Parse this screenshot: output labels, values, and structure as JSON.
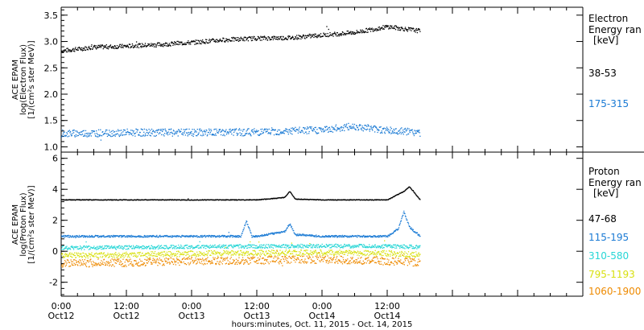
{
  "x_axis": {
    "title": "hours:minutes, Oct. 11, 2015 - Oct. 14, 2015",
    "range_hours": [
      0,
      96
    ],
    "ticks": [
      {
        "hours": 0,
        "time": "0:00",
        "date": "Oct12"
      },
      {
        "hours": 12,
        "time": "12:00",
        "date": "Oct12"
      },
      {
        "hours": 24,
        "time": "0:00",
        "date": "Oct13"
      },
      {
        "hours": 36,
        "time": "12:00",
        "date": "Oct13"
      },
      {
        "hours": 48,
        "time": "0:00",
        "date": "Oct14"
      },
      {
        "hours": 60,
        "time": "12:00",
        "date": "Oct14"
      }
    ]
  },
  "electron_panel": {
    "ylabel_line1": "ACE EPAM",
    "ylabel_line2": "log(Electron Flux)",
    "ylabel_line3": "[1/(cm²s ster MeV)]",
    "legend_title_line1": "Electron",
    "legend_title_line2": "Energy ran",
    "legend_unit": "[keV]"
  },
  "proton_panel": {
    "ylabel_line1": "ACE EPAM",
    "ylabel_line2": "log(Proton Flux)",
    "ylabel_line3": "[1/(cm²s ster MeV)]",
    "legend_title_line1": "Proton",
    "legend_title_line2": "Energy ran",
    "legend_unit": "[keV]"
  },
  "chart_data": [
    {
      "type": "scatter",
      "xlabel": "hours:minutes, Oct. 11, 2015 - Oct. 14, 2015",
      "ylabel": "ACE EPAM log(Electron Flux) [1/(cm²s ster MeV)]",
      "xlim": [
        0,
        96
      ],
      "ylim": [
        0.9,
        3.65
      ],
      "yticks": [
        1.0,
        1.5,
        2.0,
        2.5,
        3.0,
        3.5
      ],
      "series": [
        {
          "name": "38-53",
          "color": "#000000",
          "scatter": 0.04,
          "x": [
            0,
            6,
            12,
            18,
            24,
            30,
            36,
            42,
            48,
            54,
            60,
            66
          ],
          "y": [
            2.83,
            2.9,
            2.92,
            2.95,
            2.99,
            3.04,
            3.07,
            3.08,
            3.13,
            3.18,
            3.29,
            3.21
          ]
        },
        {
          "name": "175-315",
          "color": "#1a7ad4",
          "scatter": 0.07,
          "x": [
            0,
            12,
            24,
            36,
            48,
            54,
            60,
            66
          ],
          "y": [
            1.26,
            1.28,
            1.28,
            1.29,
            1.33,
            1.4,
            1.32,
            1.28
          ]
        }
      ]
    },
    {
      "type": "scatter",
      "xlabel": "hours:minutes, Oct. 11, 2015 - Oct. 14, 2015",
      "ylabel": "ACE EPAM log(Proton Flux) [1/(cm²s ster MeV)]",
      "xlim": [
        0,
        96
      ],
      "ylim": [
        -2.9,
        6.4
      ],
      "yticks": [
        -2,
        0,
        2,
        4,
        6
      ],
      "series": [
        {
          "name": "47-68",
          "color": "#000000",
          "scatter": 0.02,
          "x": [
            0,
            12,
            24,
            36,
            41,
            42,
            43,
            48,
            60,
            63,
            64,
            66
          ],
          "y": [
            3.35,
            3.35,
            3.35,
            3.35,
            3.5,
            3.9,
            3.4,
            3.35,
            3.35,
            3.9,
            4.2,
            3.35
          ]
        },
        {
          "name": "115-195",
          "color": "#1a7ad4",
          "scatter": 0.06,
          "x": [
            0,
            12,
            24,
            33,
            34,
            35,
            36,
            41,
            42,
            43,
            48,
            60,
            62,
            63,
            64,
            66
          ],
          "y": [
            1.0,
            1.0,
            1.0,
            1.0,
            2.0,
            1.0,
            1.0,
            1.3,
            1.8,
            1.1,
            1.0,
            1.0,
            1.5,
            2.6,
            1.6,
            1.0
          ]
        },
        {
          "name": "310-580",
          "color": "#27d6d6",
          "scatter": 0.12,
          "x": [
            0,
            12,
            24,
            36,
            48,
            60,
            66
          ],
          "y": [
            0.25,
            0.28,
            0.32,
            0.35,
            0.38,
            0.35,
            0.3
          ]
        },
        {
          "name": "795-1193",
          "color": "#d8e010",
          "scatter": 0.18,
          "x": [
            0,
            12,
            24,
            36,
            48,
            60,
            66
          ],
          "y": [
            -0.25,
            -0.2,
            -0.12,
            -0.08,
            -0.05,
            -0.1,
            -0.2
          ]
        },
        {
          "name": "1060-1900",
          "color": "#ee8a00",
          "scatter": 0.25,
          "x": [
            0,
            12,
            24,
            36,
            48,
            60,
            66
          ],
          "y": [
            -0.75,
            -0.7,
            -0.6,
            -0.55,
            -0.5,
            -0.6,
            -0.7
          ]
        }
      ]
    }
  ]
}
